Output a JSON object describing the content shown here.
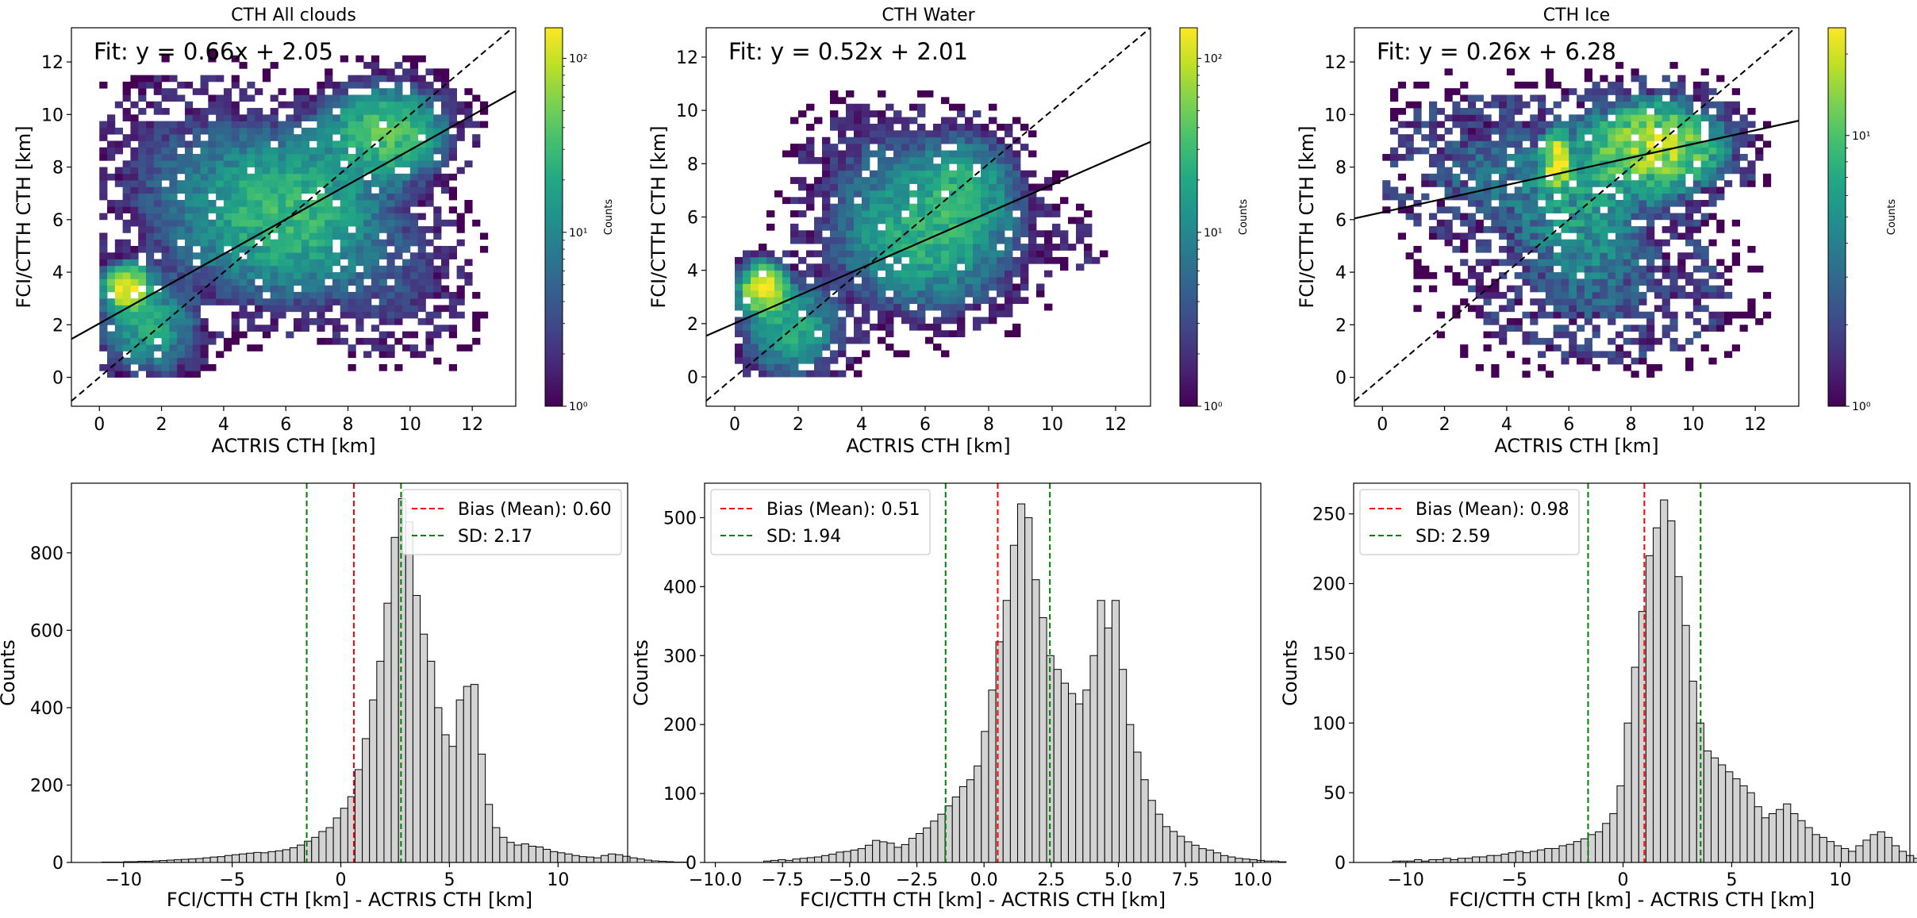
{
  "colorbar_label": "Counts",
  "chart_data": [
    {
      "type": "heatmap",
      "title": "CTH All clouds",
      "xlabel": "ACTRIS CTH [km]",
      "ylabel": "FCI/CTTH CTH [km]",
      "xlim": [
        -0.9,
        13.4
      ],
      "ylim": [
        -1.1,
        13.3
      ],
      "xticks": [
        0,
        2,
        4,
        6,
        8,
        10,
        12
      ],
      "yticks": [
        0,
        2,
        4,
        6,
        8,
        10,
        12
      ],
      "fit": {
        "label": "Fit: y = 0.66x + 2.05",
        "slope": 0.66,
        "intercept": 2.05
      },
      "one_to_one_line": true,
      "colorbar": {
        "scale": "log",
        "min": 1,
        "max": 150,
        "ticks": [
          1,
          10,
          100
        ],
        "tick_labels": [
          "10⁰",
          "10¹",
          "10²"
        ],
        "label": "Counts"
      },
      "density_clusters": [
        {
          "x": 0.9,
          "y": 3.4,
          "sx": 0.35,
          "sy": 0.4,
          "peak": 150
        },
        {
          "x": 1.6,
          "y": 2.0,
          "sx": 0.8,
          "sy": 1.0,
          "peak": 20
        },
        {
          "x": 6.0,
          "y": 6.2,
          "sx": 1.7,
          "sy": 1.6,
          "peak": 30
        },
        {
          "x": 9.2,
          "y": 9.3,
          "sx": 1.0,
          "sy": 0.9,
          "peak": 40
        },
        {
          "x": 2.8,
          "y": 7.5,
          "sx": 1.6,
          "sy": 2.0,
          "peak": 4
        },
        {
          "x": 9.5,
          "y": 3.5,
          "sx": 1.3,
          "sy": 1.5,
          "peak": 3
        }
      ]
    },
    {
      "type": "heatmap",
      "title": "CTH Water",
      "xlabel": "ACTRIS CTH [km]",
      "ylabel": "FCI/CTTH CTH [km]",
      "xlim": [
        -0.9,
        13.1
      ],
      "ylim": [
        -1.1,
        13.1
      ],
      "xticks": [
        0,
        2,
        4,
        6,
        8,
        10,
        12
      ],
      "yticks": [
        0,
        2,
        4,
        6,
        8,
        10,
        12
      ],
      "fit": {
        "label": "Fit: y = 0.52x + 2.01",
        "slope": 0.52,
        "intercept": 2.01
      },
      "one_to_one_line": true,
      "colorbar": {
        "scale": "log",
        "min": 1,
        "max": 150,
        "ticks": [
          1,
          10,
          100
        ],
        "tick_labels": [
          "10⁰",
          "10¹",
          "10²"
        ],
        "label": "Counts"
      },
      "density_clusters": [
        {
          "x": 0.9,
          "y": 3.3,
          "sx": 0.35,
          "sy": 0.45,
          "peak": 150
        },
        {
          "x": 1.8,
          "y": 1.8,
          "sx": 0.8,
          "sy": 0.9,
          "peak": 22
        },
        {
          "x": 6.0,
          "y": 5.3,
          "sx": 1.5,
          "sy": 1.4,
          "peak": 25
        },
        {
          "x": 7.2,
          "y": 7.2,
          "sx": 0.9,
          "sy": 1.0,
          "peak": 18
        },
        {
          "x": 4.5,
          "y": 8.0,
          "sx": 1.3,
          "sy": 1.2,
          "peak": 3
        },
        {
          "x": 11.0,
          "y": 5.0,
          "sx": 0.4,
          "sy": 0.5,
          "peak": 2
        }
      ]
    },
    {
      "type": "heatmap",
      "title": "CTH Ice",
      "xlabel": "ACTRIS CTH [km]",
      "ylabel": "FCI/CTTH CTH [km]",
      "xlim": [
        -0.9,
        13.4
      ],
      "ylim": [
        -1.1,
        13.3
      ],
      "xticks": [
        0,
        2,
        4,
        6,
        8,
        10,
        12
      ],
      "yticks": [
        0,
        2,
        4,
        6,
        8,
        10,
        12
      ],
      "fit": {
        "label": "Fit: y = 0.26x + 6.28",
        "slope": 0.26,
        "intercept": 6.28
      },
      "one_to_one_line": true,
      "colorbar": {
        "scale": "log",
        "min": 1,
        "max": 25,
        "ticks": [
          1,
          10
        ],
        "tick_labels": [
          "10⁰",
          "10¹"
        ],
        "label": "Counts"
      },
      "density_clusters": [
        {
          "x": 8.8,
          "y": 8.8,
          "sx": 1.3,
          "sy": 1.0,
          "peak": 18
        },
        {
          "x": 5.6,
          "y": 8.2,
          "sx": 0.25,
          "sy": 0.6,
          "peak": 25
        },
        {
          "x": 6.5,
          "y": 6.0,
          "sx": 1.5,
          "sy": 1.6,
          "peak": 5
        },
        {
          "x": 3.5,
          "y": 8.0,
          "sx": 2.0,
          "sy": 1.5,
          "peak": 3
        },
        {
          "x": 7.0,
          "y": 3.0,
          "sx": 2.5,
          "sy": 1.5,
          "peak": 2
        }
      ]
    },
    {
      "type": "bar",
      "subtype": "histogram",
      "xlabel": "FCI/CTTH CTH [km] - ACTRIS CTH [km]",
      "ylabel": "Counts",
      "xlim": [
        -12.4,
        13.2
      ],
      "ylim": [
        0,
        980
      ],
      "xticks": [
        -10,
        -5,
        0,
        5,
        10
      ],
      "xtick_labels": [
        "−10",
        "−5",
        "0",
        "5",
        "10"
      ],
      "yticks": [
        0,
        200,
        400,
        600,
        800
      ],
      "bin_start": -11.0,
      "bin_width": 0.333,
      "values": [
        1,
        1,
        1,
        2,
        2,
        3,
        3,
        4,
        5,
        6,
        7,
        8,
        9,
        10,
        12,
        14,
        15,
        18,
        20,
        22,
        24,
        26,
        25,
        28,
        30,
        33,
        38,
        45,
        55,
        65,
        80,
        90,
        115,
        140,
        170,
        240,
        320,
        420,
        520,
        670,
        840,
        940,
        880,
        690,
        590,
        520,
        400,
        330,
        300,
        420,
        455,
        460,
        280,
        150,
        90,
        65,
        52,
        45,
        48,
        42,
        40,
        34,
        28,
        25,
        22,
        18,
        15,
        14,
        12,
        18,
        22,
        20,
        16,
        12,
        9,
        6,
        4,
        3,
        2,
        1,
        1
      ],
      "bias": {
        "label": "Bias (Mean): 0.60",
        "value": 0.6
      },
      "sd": {
        "label": "SD: 2.17",
        "value": 2.17
      }
    },
    {
      "type": "bar",
      "subtype": "histogram",
      "xlabel": "FCI/CTTH CTH [km] - ACTRIS CTH [km]",
      "ylabel": "Counts",
      "xlim": [
        -10.4,
        10.3
      ],
      "ylim": [
        0,
        550
      ],
      "xticks": [
        -10,
        -7.5,
        -5,
        -2.5,
        0,
        2.5,
        5,
        7.5,
        10
      ],
      "xtick_labels": [
        "−10.0",
        "−7.5",
        "−5.0",
        "−2.5",
        "0.0",
        "2.5",
        "5.0",
        "7.5",
        "10.0"
      ],
      "yticks": [
        0,
        100,
        200,
        300,
        400,
        500
      ],
      "bin_start": -8.2,
      "bin_width": 0.27,
      "values": [
        2,
        3,
        4,
        3,
        5,
        6,
        7,
        8,
        10,
        12,
        15,
        16,
        18,
        20,
        25,
        32,
        30,
        28,
        22,
        26,
        35,
        42,
        50,
        60,
        70,
        82,
        95,
        110,
        120,
        140,
        190,
        250,
        320,
        380,
        460,
        520,
        500,
        410,
        355,
        300,
        280,
        260,
        245,
        230,
        250,
        300,
        380,
        340,
        380,
        280,
        200,
        160,
        120,
        90,
        70,
        52,
        45,
        38,
        30,
        25,
        20,
        18,
        14,
        10,
        8,
        6,
        5,
        4,
        3,
        2,
        2,
        1
      ],
      "bias": {
        "label": "Bias (Mean): 0.51",
        "value": 0.51
      },
      "sd": {
        "label": "SD: 1.94",
        "value": 1.94
      }
    },
    {
      "type": "bar",
      "subtype": "histogram",
      "xlabel": "FCI/CTTH CTH [km] - ACTRIS CTH [km]",
      "ylabel": "Counts",
      "xlim": [
        -12.4,
        13.2
      ],
      "ylim": [
        0,
        272
      ],
      "xticks": [
        -10,
        -5,
        0,
        5,
        10
      ],
      "xtick_labels": [
        "−10",
        "−5",
        "0",
        "5",
        "10"
      ],
      "yticks": [
        0,
        50,
        100,
        150,
        200,
        250
      ],
      "bin_start": -10.6,
      "bin_width": 0.333,
      "values": [
        1,
        1,
        1,
        2,
        1,
        2,
        2,
        3,
        2,
        3,
        3,
        4,
        4,
        5,
        5,
        6,
        7,
        8,
        7,
        8,
        9,
        10,
        10,
        12,
        13,
        15,
        17,
        20,
        22,
        28,
        35,
        55,
        100,
        140,
        180,
        220,
        240,
        260,
        245,
        205,
        170,
        130,
        100,
        80,
        75,
        70,
        65,
        60,
        55,
        50,
        40,
        32,
        35,
        38,
        42,
        35,
        30,
        25,
        20,
        18,
        15,
        12,
        10,
        8,
        12,
        16,
        20,
        22,
        18,
        12,
        8,
        5,
        3,
        2,
        1
      ],
      "bias": {
        "label": "Bias (Mean): 0.98",
        "value": 0.98
      },
      "sd": {
        "label": "SD: 2.59",
        "value": 2.59
      }
    }
  ]
}
